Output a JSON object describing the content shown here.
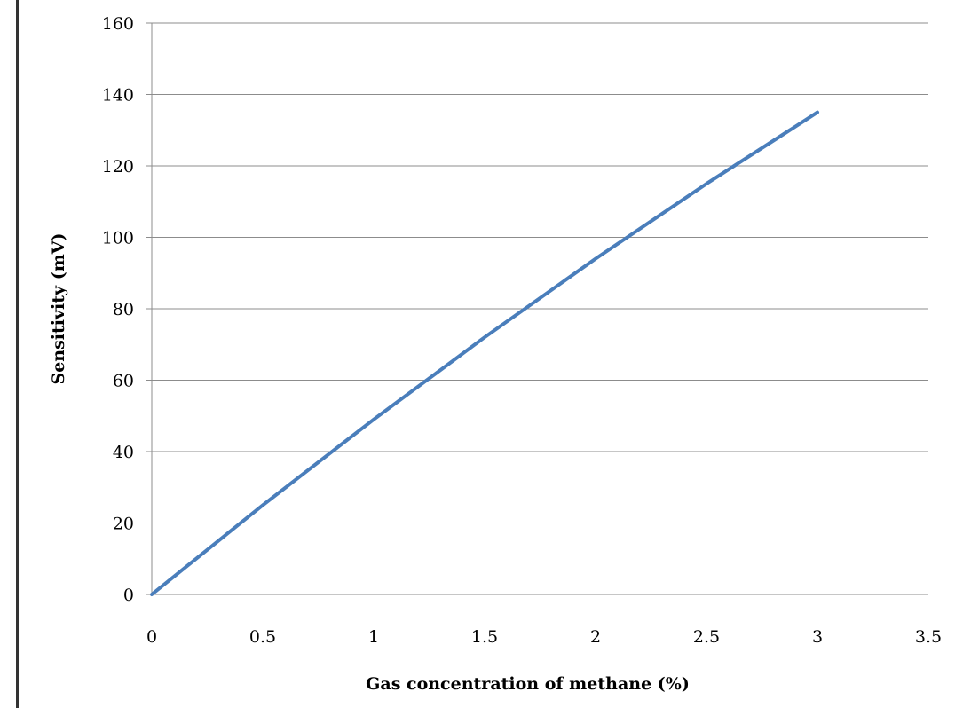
{
  "chart_data": {
    "type": "line",
    "title": "",
    "xlabel": "Gas concentration of methane (%)",
    "ylabel": "Sensitivity (mV)",
    "xlim": [
      0,
      3.5
    ],
    "ylim": [
      0,
      160
    ],
    "x_ticks": [
      "0",
      "0.5",
      "1",
      "1.5",
      "2",
      "2.5",
      "3",
      "3.5"
    ],
    "y_ticks": [
      "0",
      "20",
      "40",
      "60",
      "80",
      "100",
      "120",
      "140",
      "160"
    ],
    "grid": "horizontal",
    "legend": "none",
    "series": [
      {
        "color": "#4a7ebb",
        "x": [
          0,
          0.5,
          1,
          1.5,
          2,
          2.5,
          3
        ],
        "y": [
          0,
          25,
          49,
          72,
          94,
          115,
          135
        ]
      }
    ]
  }
}
